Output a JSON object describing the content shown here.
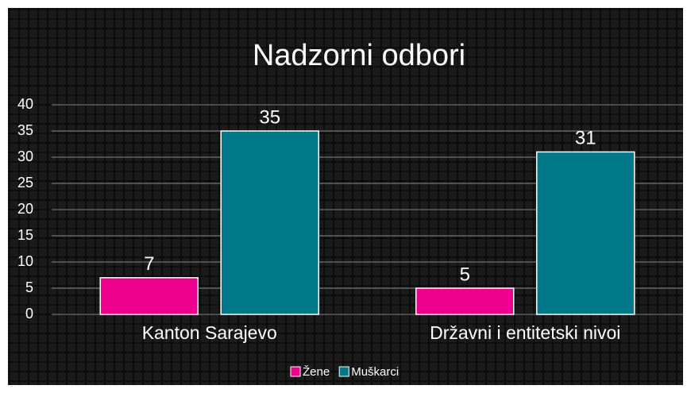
{
  "chart_data": {
    "type": "bar",
    "title": "Nadzorni odbori",
    "categories": [
      "Kanton Sarajevo",
      "Državni i entitetski nivoi"
    ],
    "series": [
      {
        "name": "Žene",
        "color": "#ec008c",
        "values": [
          7,
          5
        ]
      },
      {
        "name": "Muškarci",
        "color": "#00788a",
        "values": [
          35,
          31
        ]
      }
    ],
    "ylim": [
      0,
      40
    ],
    "yticks": [
      0,
      5,
      10,
      15,
      20,
      25,
      30,
      35,
      40
    ],
    "grid": true,
    "legend": "bottom"
  }
}
